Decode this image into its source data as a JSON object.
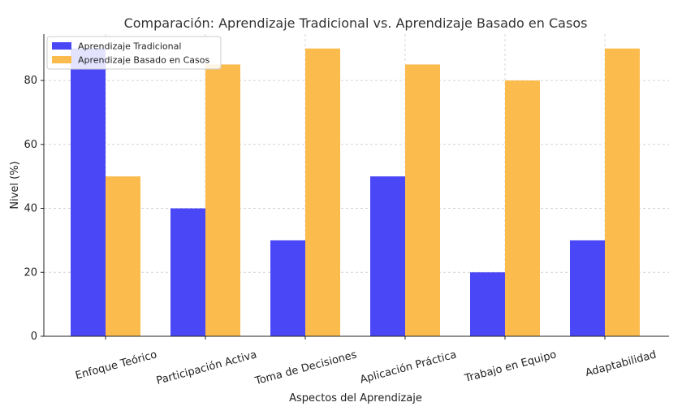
{
  "chart_data": {
    "type": "bar",
    "title": "Comparación: Aprendizaje Tradicional vs. Aprendizaje Basado en Casos",
    "xlabel": "Aspectos del Aprendizaje",
    "ylabel": "Nivel (%)",
    "ylim": [
      0,
      94.5
    ],
    "yticks": [
      0,
      20,
      40,
      60,
      80
    ],
    "grid": true,
    "legend_position": "top-left",
    "categories": [
      "Enfoque Teórico",
      "Participación Activa",
      "Toma de Decisiones",
      "Aplicación Práctica",
      "Trabajo en Equipo",
      "Adaptabilidad"
    ],
    "series": [
      {
        "name": "Aprendizaje Tradicional",
        "color": "#4a47f7",
        "values": [
          90,
          40,
          30,
          50,
          20,
          30
        ]
      },
      {
        "name": "Aprendizaje Basado en Casos",
        "color": "#fcbc4d",
        "values": [
          50,
          85,
          90,
          85,
          80,
          90
        ]
      }
    ]
  }
}
